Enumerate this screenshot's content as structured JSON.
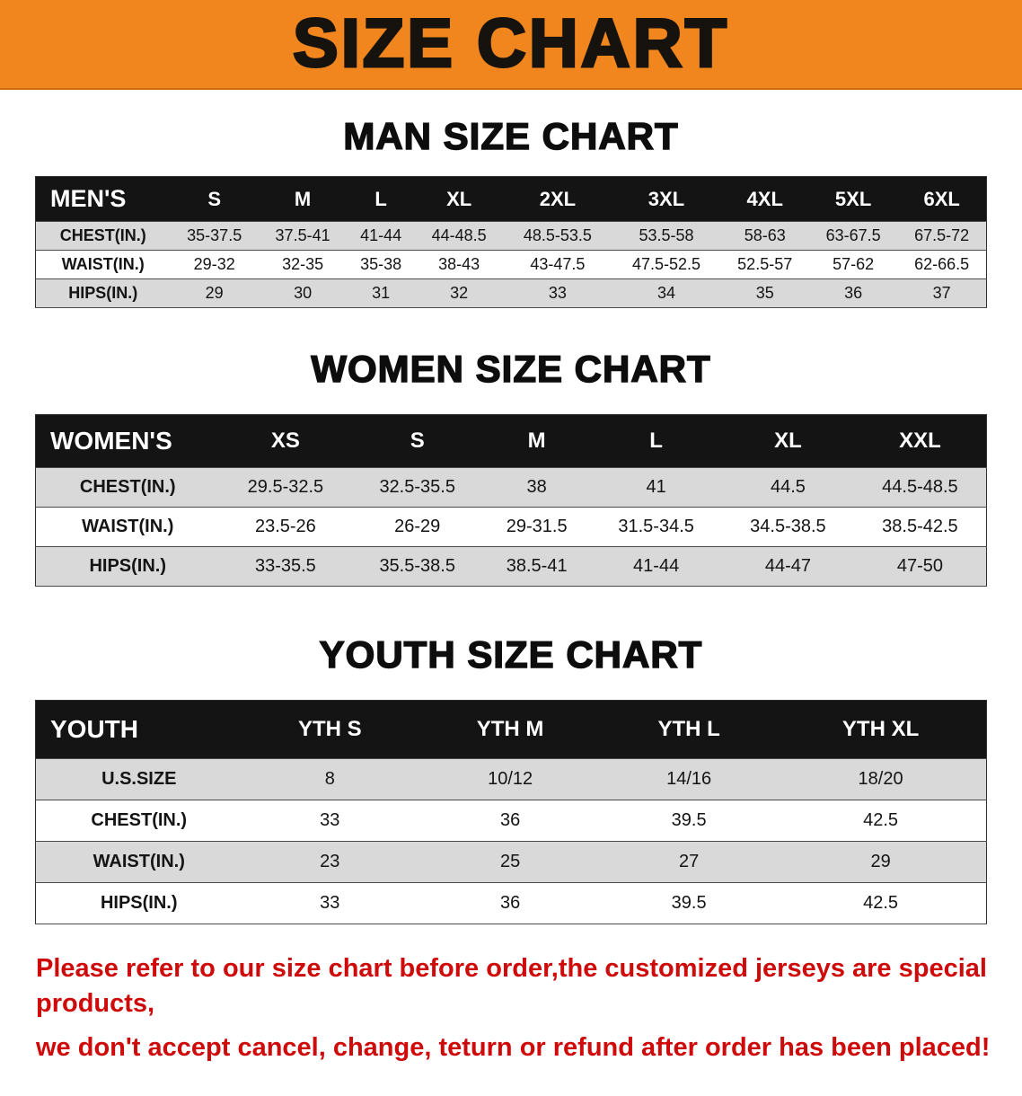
{
  "banner": {
    "title": "SIZE CHART"
  },
  "colors": {
    "banner_bg": "#f1861f",
    "banner_text": "#16120e",
    "header_bg": "#141414",
    "header_text": "#ffffff",
    "stripe": "#d9d9d9",
    "notice": "#cf0a0a"
  },
  "sections": [
    {
      "heading": "MAN SIZE CHART",
      "table": {
        "header_label": "MEN'S",
        "columns": [
          "S",
          "M",
          "L",
          "XL",
          "2XL",
          "3XL",
          "4XL",
          "5XL",
          "6XL"
        ],
        "rows": [
          {
            "label": "CHEST(IN.)",
            "values": [
              "35-37.5",
              "37.5-41",
              "41-44",
              "44-48.5",
              "48.5-53.5",
              "53.5-58",
              "58-63",
              "63-67.5",
              "67.5-72"
            ]
          },
          {
            "label": "WAIST(IN.)",
            "values": [
              "29-32",
              "32-35",
              "35-38",
              "38-43",
              "43-47.5",
              "47.5-52.5",
              "52.5-57",
              "57-62",
              "62-66.5"
            ]
          },
          {
            "label": "HIPS(IN.)",
            "values": [
              "29",
              "30",
              "31",
              "32",
              "33",
              "34",
              "35",
              "36",
              "37"
            ]
          }
        ]
      }
    },
    {
      "heading": "WOMEN SIZE CHART",
      "table": {
        "header_label": "WOMEN'S",
        "columns": [
          "XS",
          "S",
          "M",
          "L",
          "XL",
          "XXL"
        ],
        "rows": [
          {
            "label": "CHEST(IN.)",
            "values": [
              "29.5-32.5",
              "32.5-35.5",
              "38",
              "41",
              "44.5",
              "44.5-48.5"
            ]
          },
          {
            "label": "WAIST(IN.)",
            "values": [
              "23.5-26",
              "26-29",
              "29-31.5",
              "31.5-34.5",
              "34.5-38.5",
              "38.5-42.5"
            ]
          },
          {
            "label": "HIPS(IN.)",
            "values": [
              "33-35.5",
              "35.5-38.5",
              "38.5-41",
              "41-44",
              "44-47",
              "47-50"
            ]
          }
        ]
      }
    },
    {
      "heading": "YOUTH SIZE CHART",
      "table": {
        "header_label": "YOUTH",
        "columns": [
          "YTH S",
          "YTH M",
          "YTH L",
          "YTH XL"
        ],
        "rows": [
          {
            "label": "U.S.SIZE",
            "values": [
              "8",
              "10/12",
              "14/16",
              "18/20"
            ]
          },
          {
            "label": "CHEST(IN.)",
            "values": [
              "33",
              "36",
              "39.5",
              "42.5"
            ]
          },
          {
            "label": "WAIST(IN.)",
            "values": [
              "23",
              "25",
              "27",
              "29"
            ]
          },
          {
            "label": "HIPS(IN.)",
            "values": [
              "33",
              "36",
              "39.5",
              "42.5"
            ]
          }
        ]
      }
    }
  ],
  "footer": {
    "lines": [
      "Please refer to our size chart before order,the customized jerseys are special products,",
      "we don't accept cancel, change, teturn or refund after order has been placed!"
    ]
  }
}
